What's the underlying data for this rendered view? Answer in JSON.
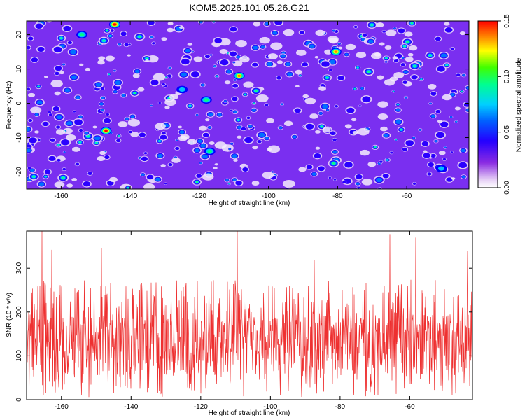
{
  "figure_title": "KOM5.2026.101.05.26.G21",
  "chart_data": [
    {
      "type": "heatmap",
      "id": "spectrogram",
      "title": "KOM5.2026.101.05.26.G21",
      "xlabel": "Height of straight line (km)",
      "ylabel": "Frequency (Hz)",
      "xlim": [
        -170,
        -42
      ],
      "ylim": [
        -25,
        24
      ],
      "xticks": [
        -160,
        -140,
        -120,
        -100,
        -80,
        -60
      ],
      "yticks": [
        -20,
        -10,
        0,
        10,
        20
      ],
      "colorbar": {
        "label": "Normalized spectral amplitude",
        "range": [
          0.0,
          0.15
        ],
        "ticks": [
          "0.00",
          "0.05",
          "0.10",
          "0.15"
        ],
        "tick_values": [
          0.0,
          0.05,
          0.1,
          0.15
        ]
      },
      "peaks": [
        {
          "x": -144.5,
          "y": 23,
          "value": 0.15
        },
        {
          "x": -147,
          "y": -8,
          "value": 0.14
        },
        {
          "x": -108.5,
          "y": 8,
          "value": 0.13
        },
        {
          "x": -80.5,
          "y": 15,
          "value": 0.12
        },
        {
          "x": -154,
          "y": 20,
          "value": 0.08
        },
        {
          "x": -118,
          "y": 1,
          "value": 0.07
        },
        {
          "x": -117,
          "y": -14,
          "value": 0.07
        },
        {
          "x": -125,
          "y": 4,
          "value": 0.06
        },
        {
          "x": -50,
          "y": -19,
          "value": 0.06
        }
      ],
      "colors": [
        "#ffffff",
        "#e9d5f7",
        "#8a2be2",
        "#5a00ff",
        "#0000ff",
        "#00b4ff",
        "#00ff80",
        "#ffff00",
        "#ff8000",
        "#ff0000"
      ]
    },
    {
      "type": "line",
      "id": "snr",
      "xlabel": "Height of straight line (km)",
      "ylabel": "SNR (10 * v/v)",
      "xlim": [
        -170,
        -42
      ],
      "ylim": [
        0,
        385
      ],
      "xticks": [
        -160,
        -140,
        -120,
        -100,
        -80,
        -60
      ],
      "yticks": [
        0,
        100,
        200,
        300
      ],
      "baseline_mean": 125,
      "spikes": [
        {
          "x": -165.5,
          "value": 385
        },
        {
          "x": -109.5,
          "value": 385
        },
        {
          "x": -148.5,
          "value": 345
        },
        {
          "x": -65.8,
          "value": 378
        },
        {
          "x": -58.2,
          "value": 370
        },
        {
          "x": -43.5,
          "value": 340
        },
        {
          "x": -162.8,
          "value": 342
        },
        {
          "x": -87.5,
          "value": 318
        }
      ],
      "series_color": "#ee3030"
    }
  ]
}
